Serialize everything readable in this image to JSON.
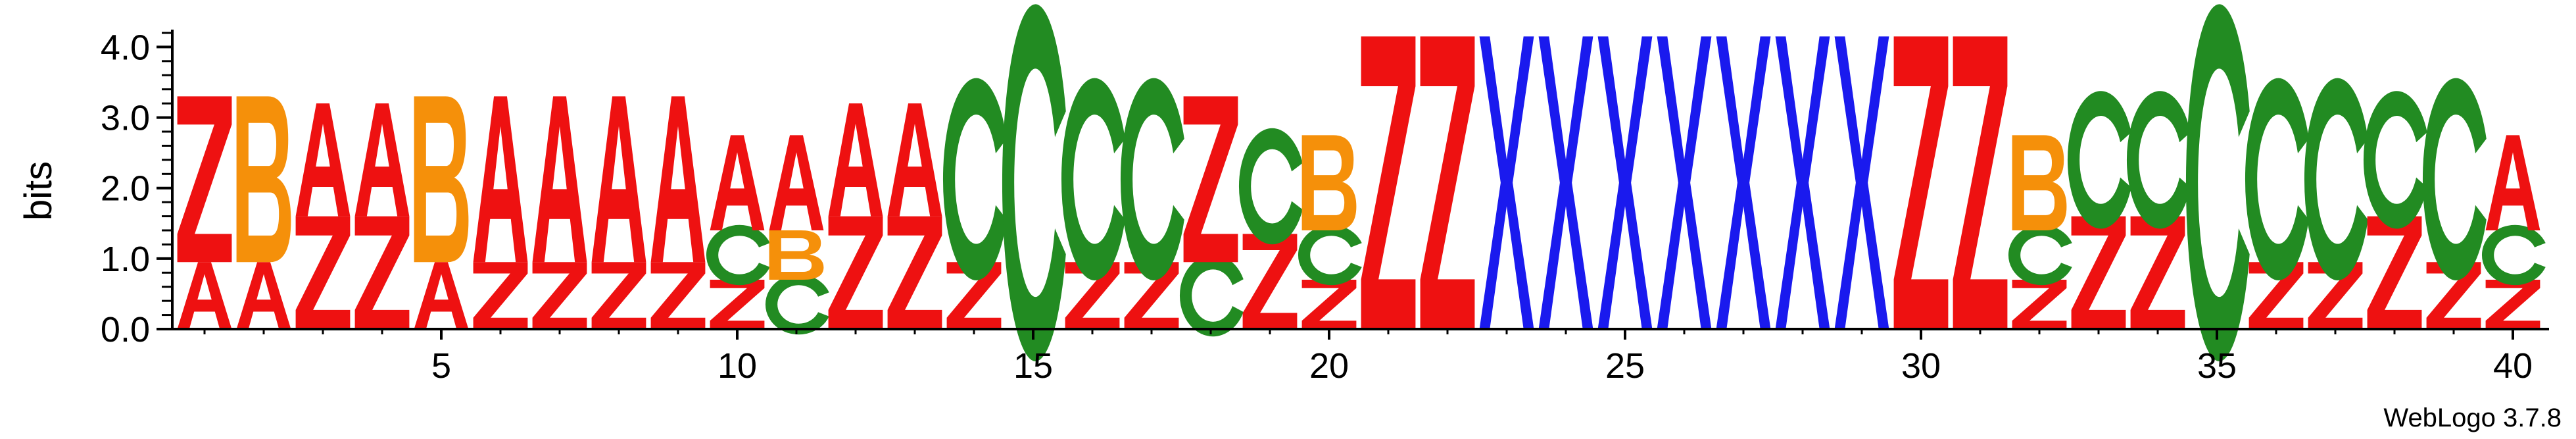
{
  "chart_data": {
    "type": "sequence-logo",
    "ylabel": "bits",
    "ylim": [
      0,
      4.2
    ],
    "yticks": [
      0.0,
      1.0,
      2.0,
      3.0,
      4.0
    ],
    "ytick_labels": [
      "0.0",
      "1.0",
      "2.0",
      "3.0",
      "4.0"
    ],
    "xticks": [
      5,
      10,
      15,
      20,
      25,
      30,
      35,
      40
    ],
    "xtick_labels": [
      "5",
      "10",
      "15",
      "20",
      "25",
      "30",
      "35",
      "40"
    ],
    "positions_count": 40,
    "colors": {
      "A": "#ee1111",
      "Z": "#ee1111",
      "B": "#f5900a",
      "C": "#228b22",
      "X": "#1a1aee"
    },
    "columns": [
      {
        "pos": 1,
        "stack": [
          {
            "l": "A",
            "v": 0.95
          },
          {
            "l": "Z",
            "v": 2.35
          }
        ]
      },
      {
        "pos": 2,
        "stack": [
          {
            "l": "A",
            "v": 0.95
          },
          {
            "l": "B",
            "v": 2.35
          }
        ]
      },
      {
        "pos": 3,
        "stack": [
          {
            "l": "Z",
            "v": 1.6
          },
          {
            "l": "A",
            "v": 1.6
          }
        ]
      },
      {
        "pos": 4,
        "stack": [
          {
            "l": "Z",
            "v": 1.6
          },
          {
            "l": "A",
            "v": 1.6
          }
        ]
      },
      {
        "pos": 5,
        "stack": [
          {
            "l": "A",
            "v": 0.95
          },
          {
            "l": "B",
            "v": 2.35
          }
        ]
      },
      {
        "pos": 6,
        "stack": [
          {
            "l": "Z",
            "v": 0.95
          },
          {
            "l": "A",
            "v": 2.35
          }
        ]
      },
      {
        "pos": 7,
        "stack": [
          {
            "l": "Z",
            "v": 0.95
          },
          {
            "l": "A",
            "v": 2.35
          }
        ]
      },
      {
        "pos": 8,
        "stack": [
          {
            "l": "Z",
            "v": 0.95
          },
          {
            "l": "A",
            "v": 2.35
          }
        ]
      },
      {
        "pos": 9,
        "stack": [
          {
            "l": "Z",
            "v": 0.95
          },
          {
            "l": "A",
            "v": 2.35
          }
        ]
      },
      {
        "pos": 10,
        "stack": [
          {
            "l": "Z",
            "v": 0.7
          },
          {
            "l": "C",
            "v": 0.7
          },
          {
            "l": "A",
            "v": 1.35
          }
        ]
      },
      {
        "pos": 11,
        "stack": [
          {
            "l": "C",
            "v": 0.7
          },
          {
            "l": "B",
            "v": 0.7
          },
          {
            "l": "A",
            "v": 1.35
          }
        ]
      },
      {
        "pos": 12,
        "stack": [
          {
            "l": "Z",
            "v": 1.6
          },
          {
            "l": "A",
            "v": 1.6
          }
        ]
      },
      {
        "pos": 13,
        "stack": [
          {
            "l": "Z",
            "v": 1.6
          },
          {
            "l": "A",
            "v": 1.6
          }
        ]
      },
      {
        "pos": 14,
        "stack": [
          {
            "l": "Z",
            "v": 0.95
          },
          {
            "l": "C",
            "v": 2.35
          }
        ]
      },
      {
        "pos": 15,
        "stack": [
          {
            "l": "C",
            "v": 4.15
          }
        ]
      },
      {
        "pos": 16,
        "stack": [
          {
            "l": "Z",
            "v": 0.95
          },
          {
            "l": "C",
            "v": 2.35
          }
        ]
      },
      {
        "pos": 17,
        "stack": [
          {
            "l": "Z",
            "v": 0.95
          },
          {
            "l": "C",
            "v": 2.35
          }
        ]
      },
      {
        "pos": 18,
        "stack": [
          {
            "l": "C",
            "v": 0.95
          },
          {
            "l": "Z",
            "v": 2.35
          }
        ]
      },
      {
        "pos": 19,
        "stack": [
          {
            "l": "Z",
            "v": 1.35
          },
          {
            "l": "C",
            "v": 1.35
          }
        ]
      },
      {
        "pos": 20,
        "stack": [
          {
            "l": "Z",
            "v": 0.7
          },
          {
            "l": "C",
            "v": 0.7
          },
          {
            "l": "B",
            "v": 1.35
          }
        ]
      },
      {
        "pos": 21,
        "stack": [
          {
            "l": "Z",
            "v": 4.15
          }
        ]
      },
      {
        "pos": 22,
        "stack": [
          {
            "l": "Z",
            "v": 4.15
          }
        ]
      },
      {
        "pos": 23,
        "stack": [
          {
            "l": "X",
            "v": 4.15
          }
        ]
      },
      {
        "pos": 24,
        "stack": [
          {
            "l": "X",
            "v": 4.15
          }
        ]
      },
      {
        "pos": 25,
        "stack": [
          {
            "l": "X",
            "v": 4.15
          }
        ]
      },
      {
        "pos": 26,
        "stack": [
          {
            "l": "X",
            "v": 4.15
          }
        ]
      },
      {
        "pos": 27,
        "stack": [
          {
            "l": "X",
            "v": 4.15
          }
        ]
      },
      {
        "pos": 28,
        "stack": [
          {
            "l": "X",
            "v": 4.15
          }
        ]
      },
      {
        "pos": 29,
        "stack": [
          {
            "l": "X",
            "v": 4.15
          }
        ]
      },
      {
        "pos": 30,
        "stack": [
          {
            "l": "Z",
            "v": 4.15
          }
        ]
      },
      {
        "pos": 31,
        "stack": [
          {
            "l": "Z",
            "v": 4.15
          }
        ]
      },
      {
        "pos": 32,
        "stack": [
          {
            "l": "Z",
            "v": 0.7
          },
          {
            "l": "C",
            "v": 0.7
          },
          {
            "l": "B",
            "v": 1.35
          }
        ]
      },
      {
        "pos": 33,
        "stack": [
          {
            "l": "Z",
            "v": 1.6
          },
          {
            "l": "C",
            "v": 1.6
          }
        ]
      },
      {
        "pos": 34,
        "stack": [
          {
            "l": "Z",
            "v": 1.6
          },
          {
            "l": "C",
            "v": 1.6
          }
        ]
      },
      {
        "pos": 35,
        "stack": [
          {
            "l": "C",
            "v": 4.15
          }
        ]
      },
      {
        "pos": 36,
        "stack": [
          {
            "l": "Z",
            "v": 0.95
          },
          {
            "l": "C",
            "v": 2.35
          }
        ]
      },
      {
        "pos": 37,
        "stack": [
          {
            "l": "Z",
            "v": 0.95
          },
          {
            "l": "C",
            "v": 2.35
          }
        ]
      },
      {
        "pos": 38,
        "stack": [
          {
            "l": "Z",
            "v": 1.6
          },
          {
            "l": "C",
            "v": 1.6
          }
        ]
      },
      {
        "pos": 39,
        "stack": [
          {
            "l": "Z",
            "v": 0.95
          },
          {
            "l": "C",
            "v": 2.35
          }
        ]
      },
      {
        "pos": 40,
        "stack": [
          {
            "l": "Z",
            "v": 0.7
          },
          {
            "l": "C",
            "v": 0.7
          },
          {
            "l": "A",
            "v": 1.35
          }
        ]
      }
    ]
  },
  "footer": {
    "credit": "WebLogo 3.7.8"
  }
}
